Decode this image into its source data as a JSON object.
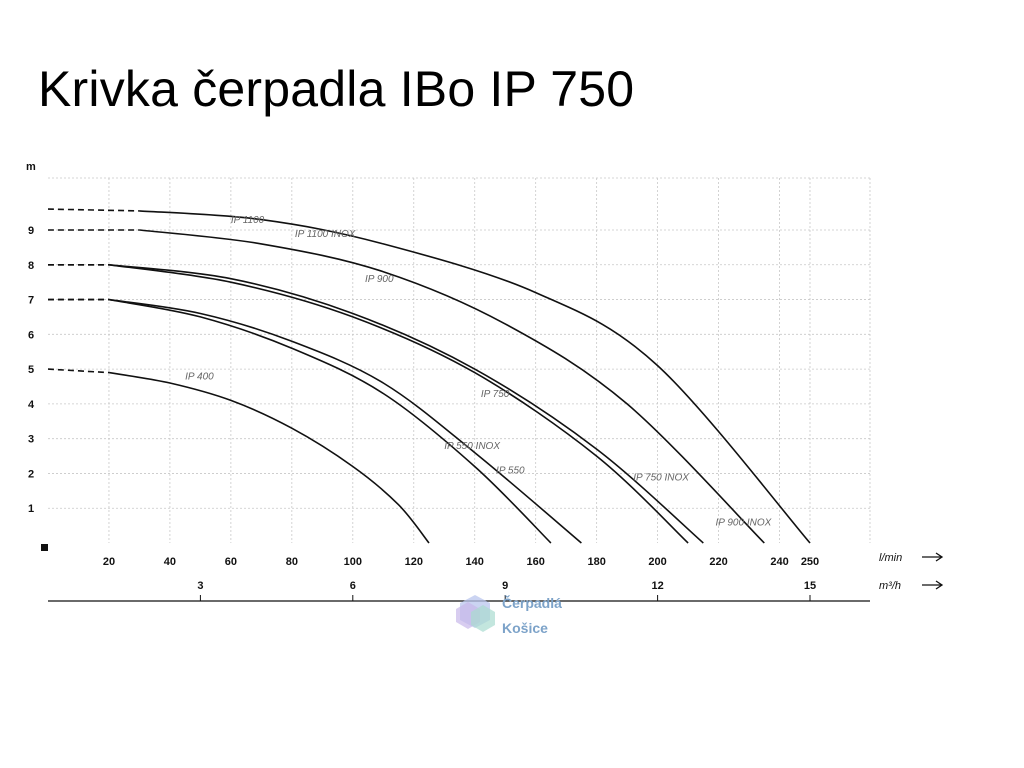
{
  "title": "Krivka čerpadla IBo IP 750",
  "watermark": {
    "line1": "Čerpadlá",
    "line2": "Košice"
  },
  "chart_data": {
    "type": "line",
    "ylabel": "m",
    "xlabel": "l/min",
    "x2label": "m³/h",
    "xlim": [
      0,
      280
    ],
    "ylim": [
      0,
      10
    ],
    "x_ticks": [
      20,
      40,
      60,
      80,
      100,
      120,
      140,
      160,
      180,
      200,
      220,
      240,
      250
    ],
    "y_ticks": [
      1,
      2,
      3,
      4,
      5,
      6,
      7,
      8,
      9
    ],
    "x2_ticks": [
      {
        "label": "3",
        "lmin": 50
      },
      {
        "label": "6",
        "lmin": 100
      },
      {
        "label": "9",
        "lmin": 150
      },
      {
        "label": "12",
        "lmin": 200
      },
      {
        "label": "15",
        "lmin": 250
      }
    ],
    "grid": true,
    "series": [
      {
        "name": "IP 400",
        "points": [
          [
            0,
            5.0
          ],
          [
            20,
            4.9
          ],
          [
            40,
            4.6
          ],
          [
            60,
            4.1
          ],
          [
            80,
            3.3
          ],
          [
            100,
            2.2
          ],
          [
            115,
            1.1
          ],
          [
            125,
            0.0
          ]
        ],
        "label_at": [
          45,
          4.7
        ]
      },
      {
        "name": "IP 550 INOX",
        "points": [
          [
            0,
            7.0
          ],
          [
            20,
            7.0
          ],
          [
            50,
            6.5
          ],
          [
            80,
            5.6
          ],
          [
            110,
            4.3
          ],
          [
            140,
            2.2
          ],
          [
            165,
            0.0
          ]
        ],
        "label_at": [
          130,
          2.7
        ]
      },
      {
        "name": "IP 550",
        "points": [
          [
            0,
            7.0
          ],
          [
            20,
            7.0
          ],
          [
            50,
            6.6
          ],
          [
            80,
            5.8
          ],
          [
            110,
            4.6
          ],
          [
            140,
            2.6
          ],
          [
            175,
            0.0
          ]
        ],
        "label_at": [
          147,
          2.0
        ]
      },
      {
        "name": "IP 750",
        "points": [
          [
            0,
            8.0
          ],
          [
            20,
            8.0
          ],
          [
            60,
            7.5
          ],
          [
            100,
            6.5
          ],
          [
            140,
            4.9
          ],
          [
            180,
            2.5
          ],
          [
            210,
            0.0
          ]
        ],
        "label_at": [
          142,
          4.2
        ]
      },
      {
        "name": "IP 750 INOX",
        "points": [
          [
            0,
            8.0
          ],
          [
            20,
            8.0
          ],
          [
            60,
            7.6
          ],
          [
            100,
            6.6
          ],
          [
            140,
            5.0
          ],
          [
            180,
            2.7
          ],
          [
            215,
            0.0
          ]
        ],
        "label_at": [
          192,
          1.8
        ]
      },
      {
        "name": "IP 900",
        "points": [
          [
            0,
            9.0
          ],
          [
            30,
            9.0
          ],
          [
            70,
            8.6
          ],
          [
            110,
            7.8
          ],
          [
            150,
            6.3
          ],
          [
            190,
            4.0
          ],
          [
            235,
            0.0
          ]
        ],
        "label_at": [
          104,
          7.5
        ]
      },
      {
        "name": "IP 900 INOX",
        "points": [],
        "label_at": [
          219,
          0.5
        ]
      },
      {
        "name": "IP 1100",
        "points": [
          [
            0,
            9.6
          ],
          [
            30,
            9.55
          ],
          [
            70,
            9.3
          ],
          [
            110,
            8.6
          ],
          [
            160,
            7.2
          ],
          [
            200,
            5.1
          ],
          [
            250,
            0.0
          ]
        ],
        "label_at": [
          60,
          9.2
        ]
      },
      {
        "name": "IP 1100 INOX",
        "points": [],
        "label_at": [
          81,
          8.8
        ]
      }
    ]
  }
}
